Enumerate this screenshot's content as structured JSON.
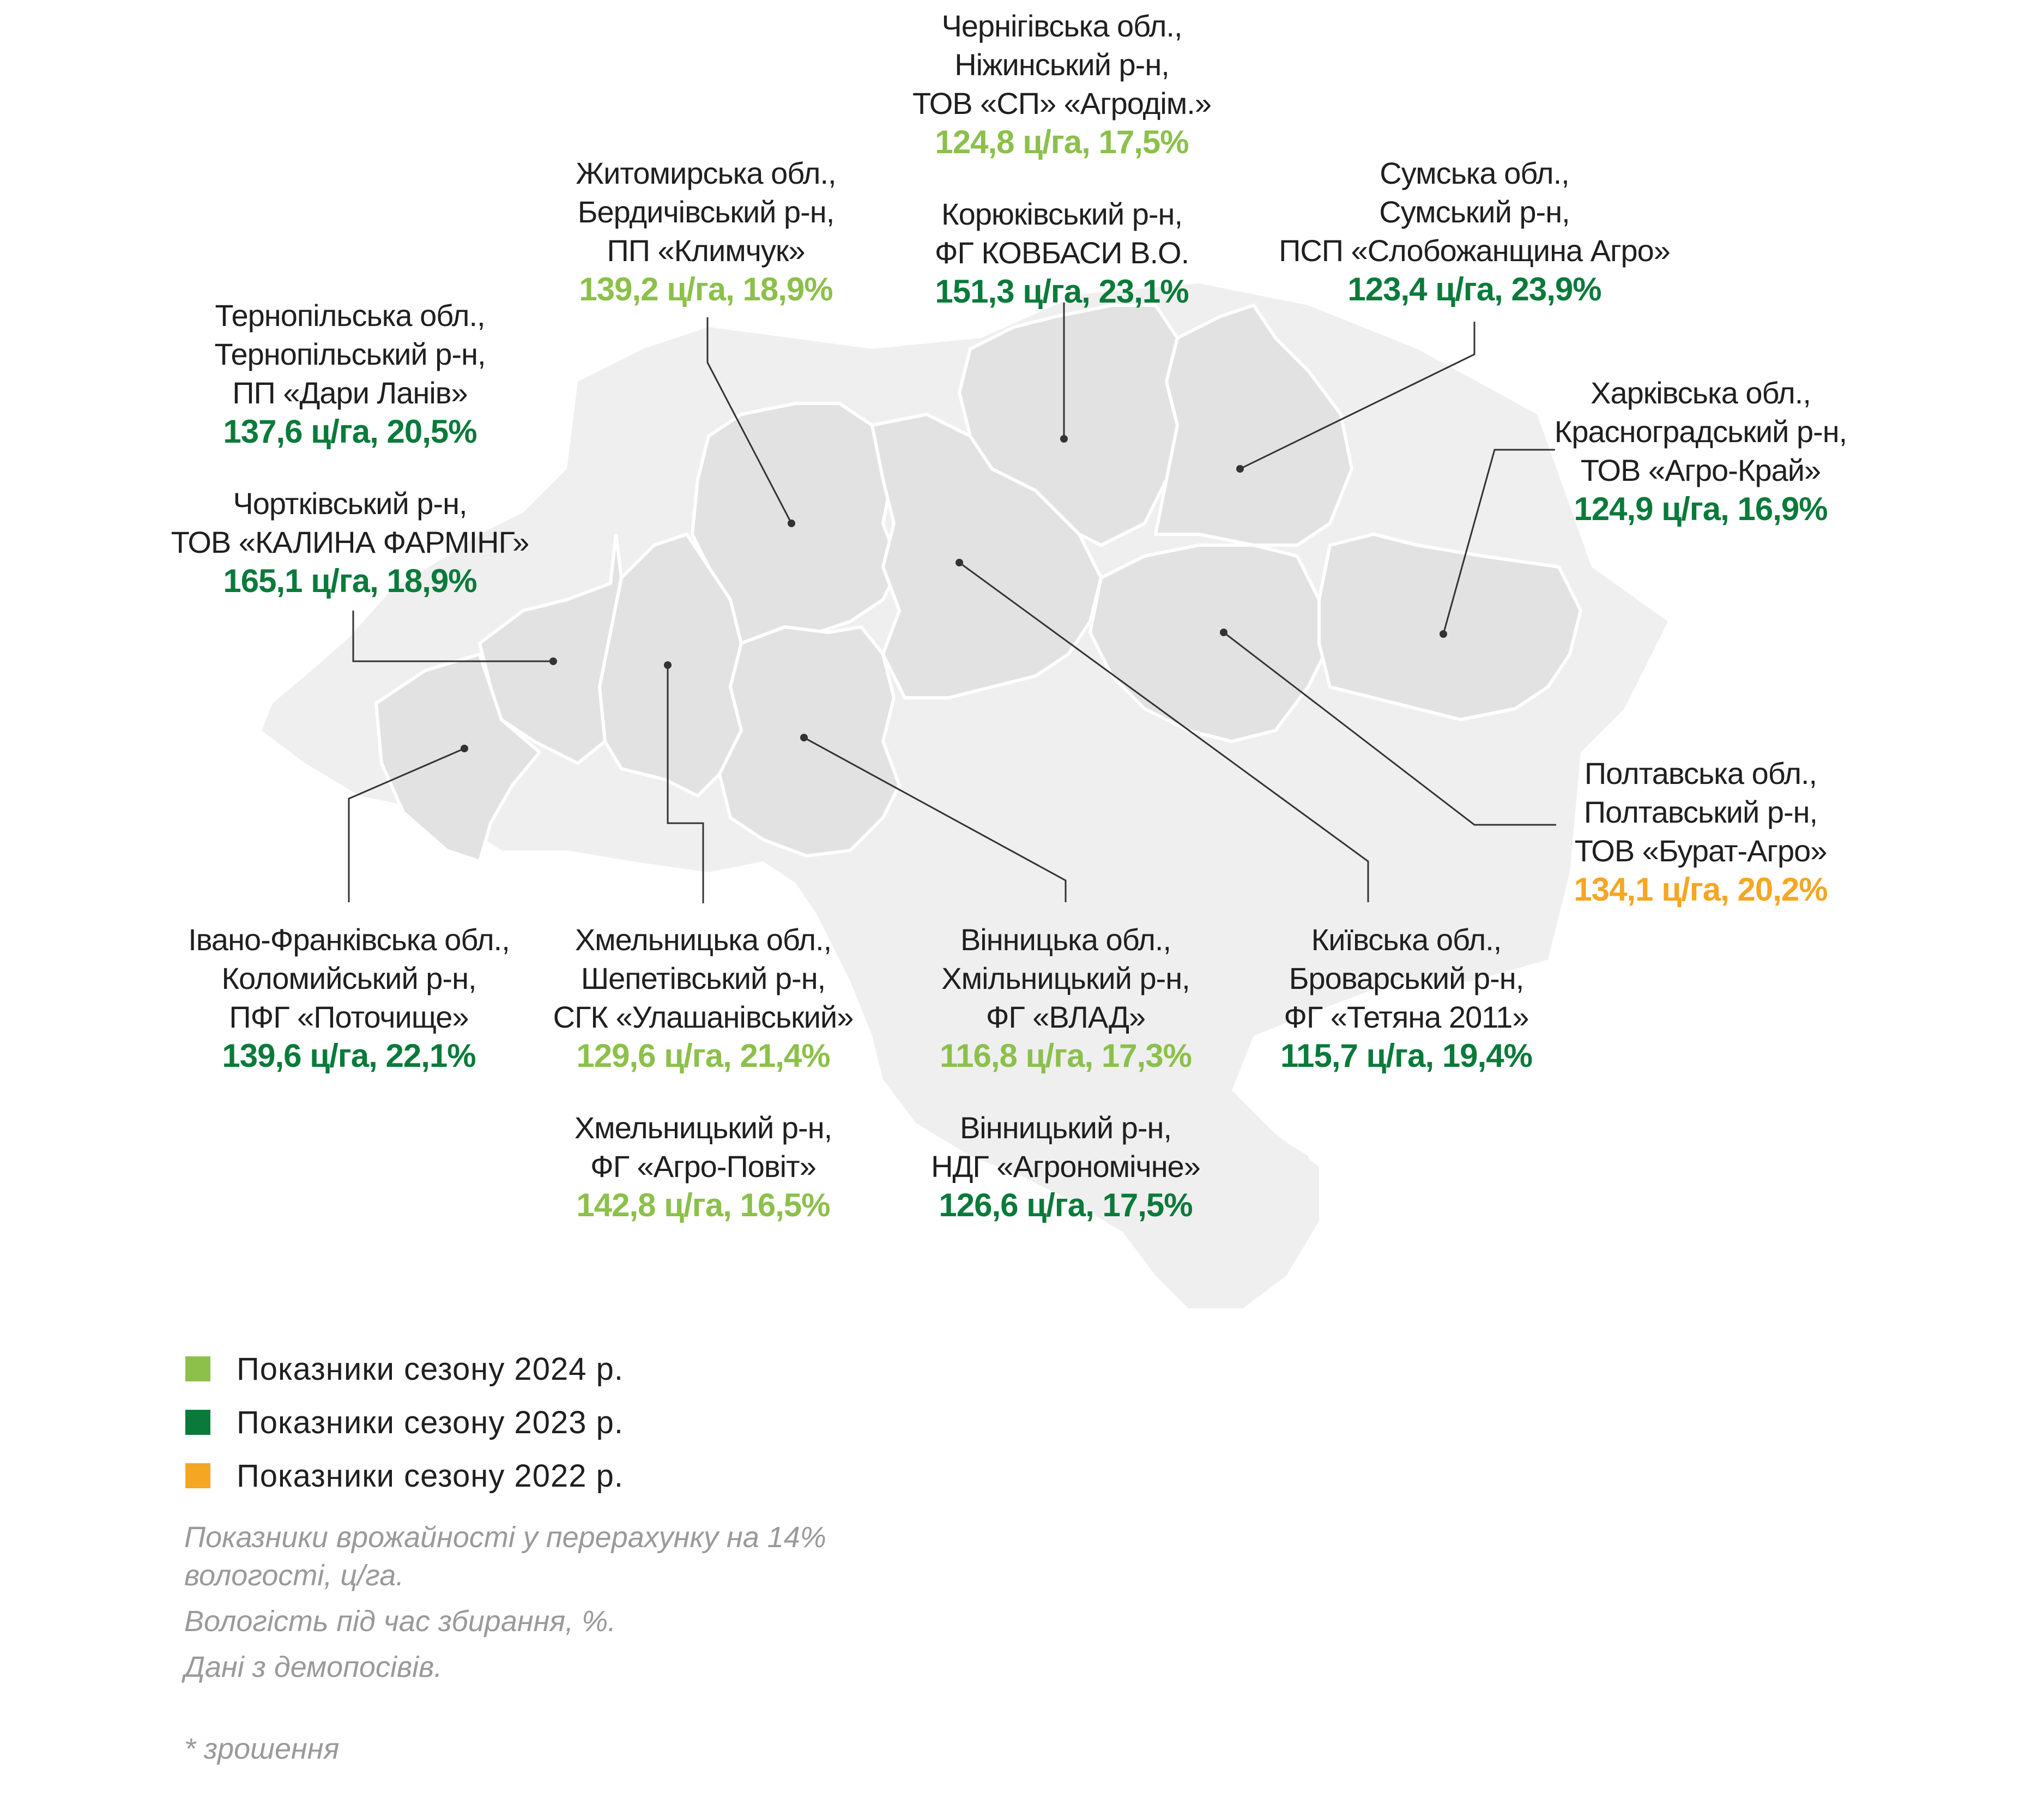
{
  "map": {
    "region_fill": "#e2e2e2",
    "background_fill": "#efefef",
    "border_color": "#ffffff",
    "leader_color": "#333333"
  },
  "colors": {
    "c2024": "#8cc04b",
    "c2023": "#0a7a3a",
    "c2022": "#f5a623"
  },
  "labels": {
    "chernihiv_nizhyn": {
      "lines": [
        "Чернігівська обл.,",
        "Ніжинський р-н,",
        "ТОВ «СП» «Агродім.»"
      ],
      "value": "124,8  ц/га, 17,5%",
      "season": "2024"
    },
    "chernihiv_koriukivka": {
      "lines": [
        "Корюківський р-н,",
        "ФГ КОВБАСИ В.О."
      ],
      "value": "151,3 ц/га, 23,1%",
      "season": "2023"
    },
    "zhytomyr": {
      "lines": [
        "Житомирська обл.,",
        "Бердичівський р-н,",
        "ПП «Климчук»"
      ],
      "value": "139,2 ц/га, 18,9%",
      "season": "2024"
    },
    "sumy": {
      "lines": [
        "Сумська обл.,",
        "Сумський р-н,",
        "ПСП «Слобожанщина Агро»"
      ],
      "value": "123,4 ц/га, 23,9%",
      "season": "2023"
    },
    "ternopil": {
      "lines": [
        "Тернопільська обл.,",
        "Тернопільський р-н,",
        "ПП «Дари Ланів»"
      ],
      "value": "137,6 ц/га, 20,5%",
      "season": "2023"
    },
    "ternopil_chortkiv": {
      "lines": [
        "Чортківський р-н,",
        "ТОВ «КАЛИНА ФАРМІНГ»"
      ],
      "value": "165,1 ц/га, 18,9%",
      "season": "2023"
    },
    "kharkiv": {
      "lines": [
        "Харківська обл.,",
        "Красноградський р-н,",
        "ТОВ «Агро-Край»"
      ],
      "value": "124,9 ц/га, 16,9%",
      "season": "2023"
    },
    "poltava": {
      "lines": [
        "Полтавська обл.,",
        "Полтавський р-н,",
        "ТОВ «Бурат-Агро»"
      ],
      "value": "134,1 ц/га, 20,2%",
      "season": "2022"
    },
    "ivano_frankivsk": {
      "lines": [
        "Івано-Франківська обл.,",
        "Коломийський р-н,",
        "ПФГ «Поточище»"
      ],
      "value": "139,6 ц/га, 22,1%",
      "season": "2023"
    },
    "khmelnytskyi_shepetivka": {
      "lines": [
        "Хмельницька обл.,",
        "Шепетівський р-н,",
        "СГК «Улашанівський»"
      ],
      "value": "129,6 ц/га, 21,4%",
      "season": "2024"
    },
    "khmelnytskyi_khm": {
      "lines": [
        "Хмельницький р-н,",
        "ФГ «Агро-Повіт»"
      ],
      "value": "142,8 ц/га, 16,5%",
      "season": "2024"
    },
    "vinnytsia_khmilnyk": {
      "lines": [
        "Вінницька обл.,",
        "Хмільницький р-н,",
        "ФГ «ВЛАД»"
      ],
      "value": "116,8 ц/га, 17,3%",
      "season": "2024"
    },
    "vinnytsia_vin": {
      "lines": [
        "Вінницький р-н,",
        "НДГ «Агрономічне»"
      ],
      "value": "126,6 ц/га, 17,5%",
      "season": "2023"
    },
    "kyiv": {
      "lines": [
        "Київська обл.,",
        "Броварський р-н,",
        "ФГ «Тетяна 2011»"
      ],
      "value": "115,7 ц/га, 19,4%",
      "season": "2023"
    }
  },
  "legend": [
    {
      "text": "Показники сезону 2024 р.",
      "color": "#8cc04b"
    },
    {
      "text": "Показники сезону 2023 р.",
      "color": "#0a7a3a"
    },
    {
      "text": "Показники сезону 2022 р.",
      "color": "#f5a623"
    }
  ],
  "notes": {
    "n1": "Показники врожайності у перерахунку на 14% вологості, ц/га.",
    "n2": "Вологість під час збирання, %.",
    "n3": "Дані з демопосівів.",
    "footnote": "* зрошення"
  }
}
